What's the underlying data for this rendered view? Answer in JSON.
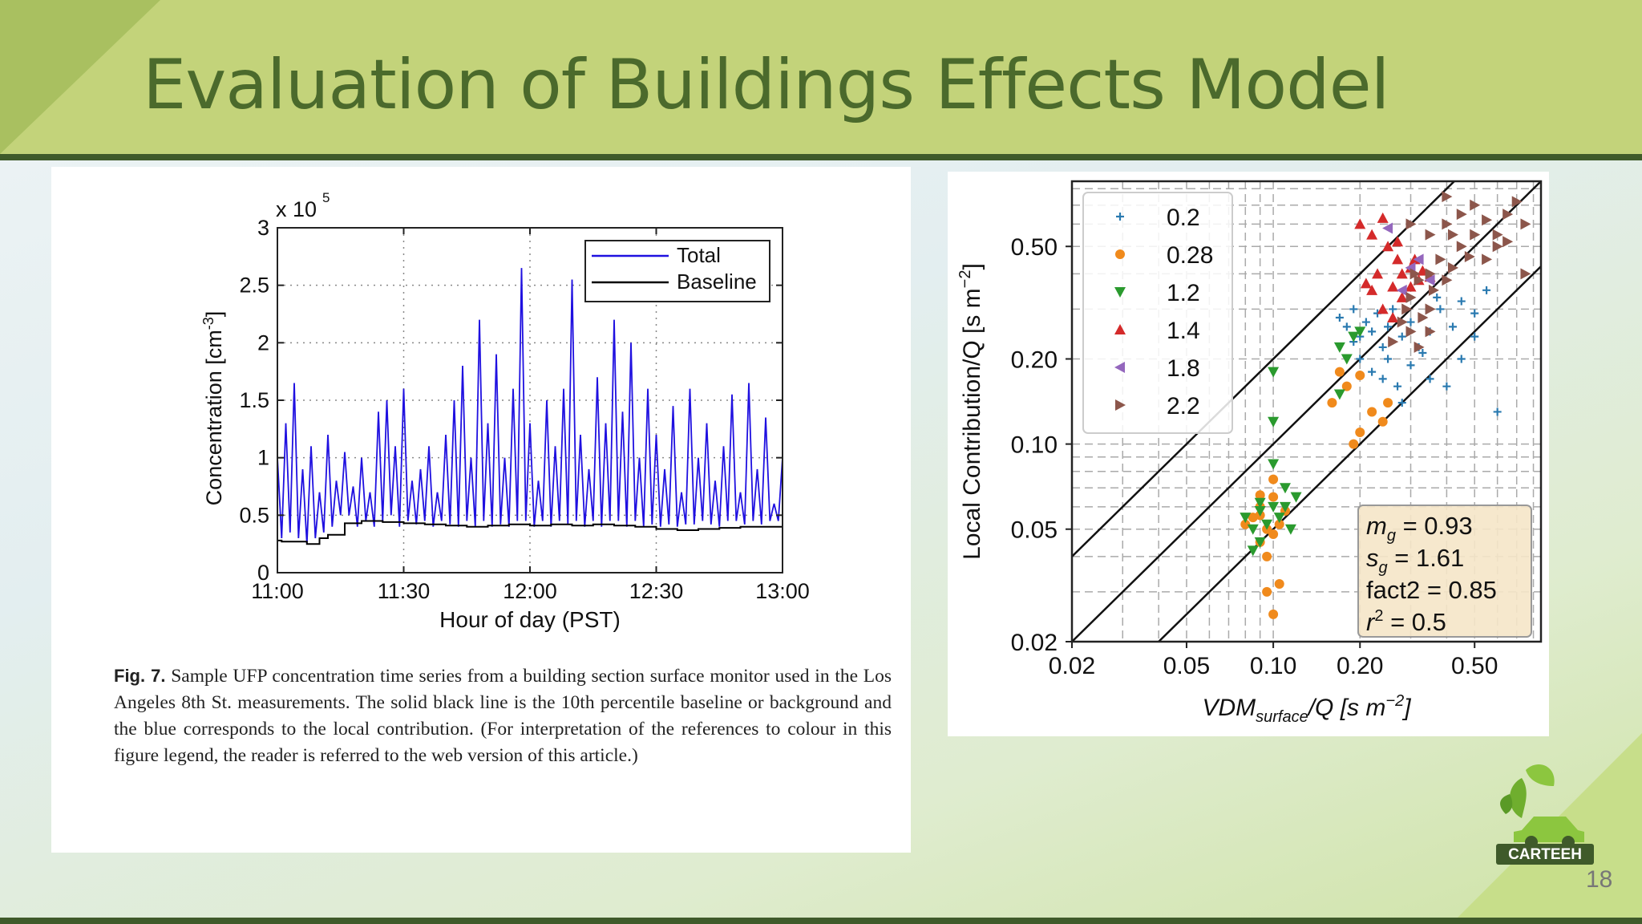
{
  "slide": {
    "title": "Evaluation of Buildings Effects Model",
    "page_number": "18",
    "logo_text": "CARTEEH",
    "colors": {
      "header": "#c3d37a",
      "title": "#4b6a2c",
      "rule": "#3f5a2a"
    }
  },
  "figure_left": {
    "caption_label": "Fig. 7.",
    "caption_text": "Sample UFP concentration time series from a building section surface monitor used in the Los Angeles 8th St. measurements. The solid black line is the 10th percentile baseline or background and the blue corresponds to the local contribution. (For interpretation of the references to colour in this figure legend, the reader is referred to the web version of this article.)"
  },
  "chart_data": [
    {
      "type": "line",
      "title": "",
      "xlabel": "Hour of day (PST)",
      "ylabel": "Concentration [cm",
      "ylabel_sup": "-3",
      "ylabel_end": "]",
      "y_multiplier": "x 10",
      "y_multiplier_exp": "5",
      "x_ticks": [
        "11:00",
        "11:30",
        "12:00",
        "12:30",
        "13:00"
      ],
      "x_range_minutes": [
        0,
        120
      ],
      "y_ticks": [
        "0",
        "0.5",
        "1",
        "1.5",
        "2",
        "2.5",
        "3"
      ],
      "ylim": [
        0,
        3
      ],
      "grid": "dotted",
      "legend_position": "top-right",
      "series": [
        {
          "name": "Total",
          "color": "#1f10e0",
          "x": [
            0,
            1,
            2,
            3,
            4,
            5,
            6,
            7,
            8,
            9,
            10,
            11,
            12,
            13,
            14,
            15,
            16,
            17,
            18,
            19,
            20,
            21,
            22,
            23,
            24,
            25,
            26,
            27,
            28,
            29,
            30,
            31,
            32,
            33,
            34,
            35,
            36,
            37,
            38,
            39,
            40,
            41,
            42,
            43,
            44,
            45,
            46,
            47,
            48,
            49,
            50,
            51,
            52,
            53,
            54,
            55,
            56,
            57,
            58,
            59,
            60,
            61,
            62,
            63,
            64,
            65,
            66,
            67,
            68,
            69,
            70,
            71,
            72,
            73,
            74,
            75,
            76,
            77,
            78,
            79,
            80,
            81,
            82,
            83,
            84,
            85,
            86,
            87,
            88,
            89,
            90,
            91,
            92,
            93,
            94,
            95,
            96,
            97,
            98,
            99,
            100,
            101,
            102,
            103,
            104,
            105,
            106,
            107,
            108,
            109,
            110,
            111,
            112,
            113,
            114,
            115,
            116,
            117,
            118,
            119,
            120
          ],
          "y": [
            1.0,
            0.3,
            1.3,
            0.35,
            1.65,
            0.3,
            0.9,
            0.25,
            1.1,
            0.3,
            0.7,
            0.35,
            1.2,
            0.4,
            0.8,
            0.5,
            1.05,
            0.5,
            0.75,
            0.4,
            1.0,
            0.45,
            0.7,
            0.4,
            1.4,
            0.45,
            1.5,
            0.5,
            1.1,
            0.4,
            1.6,
            0.45,
            0.8,
            0.42,
            0.9,
            0.45,
            1.1,
            0.4,
            0.7,
            0.45,
            1.2,
            0.42,
            1.5,
            0.4,
            1.8,
            0.45,
            1.0,
            0.4,
            2.2,
            0.45,
            1.3,
            0.4,
            1.9,
            0.42,
            1.0,
            0.4,
            1.6,
            0.45,
            2.65,
            0.45,
            1.3,
            0.4,
            0.8,
            0.45,
            1.5,
            0.4,
            1.1,
            0.45,
            1.6,
            0.42,
            2.55,
            0.45,
            1.2,
            0.4,
            0.9,
            0.45,
            1.7,
            0.4,
            1.3,
            0.45,
            2.2,
            0.45,
            1.4,
            0.4,
            2.0,
            0.45,
            1.0,
            0.4,
            1.6,
            0.42,
            1.2,
            0.4,
            0.9,
            0.42,
            1.45,
            0.4,
            0.7,
            0.42,
            1.6,
            0.42,
            1.0,
            0.45,
            1.3,
            0.42,
            0.8,
            0.4,
            1.1,
            0.45,
            1.55,
            0.45,
            0.7,
            0.42,
            1.65,
            0.45,
            0.9,
            0.42,
            1.35,
            0.45,
            0.6,
            0.45,
            1.0
          ]
        },
        {
          "name": "Baseline",
          "color": "#000000",
          "x": [
            0,
            1,
            4,
            7,
            10,
            12,
            16,
            20,
            25,
            30,
            35,
            40,
            45,
            50,
            55,
            60,
            65,
            70,
            75,
            80,
            85,
            90,
            95,
            100,
            105,
            110,
            115,
            120
          ],
          "y": [
            0.28,
            0.27,
            0.27,
            0.25,
            0.3,
            0.33,
            0.43,
            0.45,
            0.44,
            0.43,
            0.42,
            0.41,
            0.4,
            0.41,
            0.42,
            0.41,
            0.42,
            0.41,
            0.42,
            0.41,
            0.4,
            0.38,
            0.37,
            0.38,
            0.39,
            0.4,
            0.4,
            0.4
          ]
        }
      ]
    },
    {
      "type": "scatter",
      "title": "",
      "xlabel": "VDM",
      "xlabel_sub": "surface",
      "xlabel_end": "/Q [s m",
      "xlabel_sup": "−2",
      "xlabel_close": "]",
      "ylabel": "Local Contribution/Q [s m",
      "ylabel_sup": "−2",
      "ylabel_close": "]",
      "x_scale": "log",
      "y_scale": "log",
      "xlim": [
        0.02,
        0.85
      ],
      "ylim": [
        0.02,
        0.85
      ],
      "x_ticks": [
        {
          "v": 0.02,
          "label": "0.02"
        },
        {
          "v": 0.05,
          "label": "0.05"
        },
        {
          "v": 0.1,
          "label": "0.10"
        },
        {
          "v": 0.2,
          "label": "0.20"
        },
        {
          "v": 0.5,
          "label": "0.50"
        }
      ],
      "y_ticks": [
        {
          "v": 0.02,
          "label": "0.02"
        },
        {
          "v": 0.05,
          "label": "0.05"
        },
        {
          "v": 0.1,
          "label": "0.10"
        },
        {
          "v": 0.2,
          "label": "0.20"
        },
        {
          "v": 0.5,
          "label": "0.50"
        }
      ],
      "grid": "dashed",
      "legend_position": "top-left",
      "reference_lines": [
        {
          "factor": 2
        },
        {
          "factor": 1
        },
        {
          "factor": 0.5
        }
      ],
      "stats": [
        {
          "var": "m",
          "sub": "g",
          "sup": "",
          "value": " = 0.93"
        },
        {
          "var": "s",
          "sub": "g",
          "sup": "",
          "value": " = 1.61"
        },
        {
          "var": "fact2",
          "sub": "",
          "sup": "",
          "value": " = 0.85"
        },
        {
          "var": "r",
          "sub": "",
          "sup": "2",
          "value": " = 0.5"
        }
      ],
      "series": [
        {
          "name": "0.2",
          "marker": "plus",
          "color": "#2a7ab0",
          "points": [
            [
              0.17,
              0.28
            ],
            [
              0.18,
              0.26
            ],
            [
              0.19,
              0.3
            ],
            [
              0.2,
              0.24
            ],
            [
              0.21,
              0.27
            ],
            [
              0.22,
              0.25
            ],
            [
              0.23,
              0.29
            ],
            [
              0.24,
              0.22
            ],
            [
              0.25,
              0.26
            ],
            [
              0.26,
              0.3
            ],
            [
              0.28,
              0.24
            ],
            [
              0.3,
              0.27
            ],
            [
              0.32,
              0.22
            ],
            [
              0.35,
              0.25
            ],
            [
              0.38,
              0.3
            ],
            [
              0.42,
              0.26
            ],
            [
              0.45,
              0.32
            ],
            [
              0.5,
              0.24
            ],
            [
              0.2,
              0.2
            ],
            [
              0.22,
              0.18
            ],
            [
              0.25,
              0.2
            ],
            [
              0.27,
              0.16
            ],
            [
              0.3,
              0.19
            ],
            [
              0.35,
              0.17
            ],
            [
              0.4,
              0.16
            ],
            [
              0.45,
              0.2
            ],
            [
              0.55,
              0.35
            ],
            [
              0.6,
              0.13
            ],
            [
              0.28,
              0.14
            ],
            [
              0.33,
              0.21
            ],
            [
              0.19,
              0.23
            ],
            [
              0.24,
              0.17
            ],
            [
              0.5,
              0.29
            ],
            [
              0.37,
              0.33
            ]
          ]
        },
        {
          "name": "0.28",
          "marker": "circle",
          "color": "#f08a1c",
          "points": [
            [
              0.085,
              0.055
            ],
            [
              0.09,
              0.06
            ],
            [
              0.095,
              0.05
            ],
            [
              0.1,
              0.065
            ],
            [
              0.105,
              0.052
            ],
            [
              0.09,
              0.045
            ],
            [
              0.095,
              0.04
            ],
            [
              0.1,
              0.048
            ],
            [
              0.11,
              0.058
            ],
            [
              0.09,
              0.066
            ],
            [
              0.1,
              0.075
            ],
            [
              0.105,
              0.032
            ],
            [
              0.095,
              0.03
            ],
            [
              0.1,
              0.025
            ],
            [
              0.08,
              0.052
            ],
            [
              0.17,
              0.18
            ],
            [
              0.18,
              0.16
            ],
            [
              0.2,
              0.175
            ],
            [
              0.2,
              0.11
            ],
            [
              0.19,
              0.1
            ],
            [
              0.22,
              0.13
            ],
            [
              0.25,
              0.14
            ],
            [
              0.24,
              0.12
            ],
            [
              0.16,
              0.14
            ],
            [
              0.09,
              0.056
            ]
          ]
        },
        {
          "name": "1.2",
          "marker": "tri-down",
          "color": "#2a9a2e",
          "points": [
            [
              0.08,
              0.055
            ],
            [
              0.085,
              0.05
            ],
            [
              0.09,
              0.058
            ],
            [
              0.095,
              0.052
            ],
            [
              0.1,
              0.06
            ],
            [
              0.105,
              0.055
            ],
            [
              0.11,
              0.07
            ],
            [
              0.12,
              0.065
            ],
            [
              0.1,
              0.085
            ],
            [
              0.1,
              0.12
            ],
            [
              0.1,
              0.18
            ],
            [
              0.085,
              0.042
            ],
            [
              0.09,
              0.045
            ],
            [
              0.115,
              0.05
            ],
            [
              0.17,
              0.22
            ],
            [
              0.18,
              0.2
            ],
            [
              0.19,
              0.24
            ],
            [
              0.17,
              0.15
            ],
            [
              0.2,
              0.25
            ],
            [
              0.11,
              0.06
            ],
            [
              0.09,
              0.062
            ]
          ]
        },
        {
          "name": "1.4",
          "marker": "tri-up",
          "color": "#d42a2a",
          "points": [
            [
              0.2,
              0.6
            ],
            [
              0.22,
              0.55
            ],
            [
              0.24,
              0.63
            ],
            [
              0.25,
              0.5
            ],
            [
              0.27,
              0.45
            ],
            [
              0.28,
              0.4
            ],
            [
              0.3,
              0.42
            ],
            [
              0.32,
              0.38
            ],
            [
              0.22,
              0.35
            ],
            [
              0.21,
              0.37
            ],
            [
              0.24,
              0.3
            ],
            [
              0.26,
              0.28
            ],
            [
              0.28,
              0.33
            ],
            [
              0.3,
              0.36
            ],
            [
              0.33,
              0.41
            ],
            [
              0.35,
              0.39
            ],
            [
              0.23,
              0.4
            ],
            [
              0.27,
              0.52
            ],
            [
              0.31,
              0.45
            ],
            [
              0.26,
              0.36
            ]
          ]
        },
        {
          "name": "1.8",
          "marker": "tri-left",
          "color": "#9467bd",
          "points": [
            [
              0.25,
              0.58
            ],
            [
              0.3,
              0.42
            ],
            [
              0.35,
              0.38
            ],
            [
              0.32,
              0.45
            ],
            [
              0.28,
              0.35
            ]
          ]
        },
        {
          "name": "2.2",
          "marker": "tri-right",
          "color": "#8c564b",
          "points": [
            [
              0.3,
              0.6
            ],
            [
              0.35,
              0.55
            ],
            [
              0.4,
              0.6
            ],
            [
              0.45,
              0.65
            ],
            [
              0.5,
              0.7
            ],
            [
              0.55,
              0.62
            ],
            [
              0.6,
              0.55
            ],
            [
              0.65,
              0.65
            ],
            [
              0.7,
              0.72
            ],
            [
              0.75,
              0.6
            ],
            [
              0.4,
              0.75
            ],
            [
              0.45,
              0.5
            ],
            [
              0.5,
              0.55
            ],
            [
              0.6,
              0.5
            ],
            [
              0.35,
              0.4
            ],
            [
              0.38,
              0.45
            ],
            [
              0.4,
              0.38
            ],
            [
              0.42,
              0.42
            ],
            [
              0.3,
              0.33
            ],
            [
              0.32,
              0.38
            ],
            [
              0.35,
              0.3
            ],
            [
              0.28,
              0.27
            ],
            [
              0.3,
              0.25
            ],
            [
              0.32,
              0.22
            ],
            [
              0.35,
              0.25
            ],
            [
              0.55,
              0.45
            ],
            [
              0.75,
              0.4
            ],
            [
              0.26,
              0.23
            ],
            [
              0.29,
              0.3
            ],
            [
              0.48,
              0.46
            ],
            [
              0.36,
              0.35
            ],
            [
              0.65,
              0.52
            ],
            [
              0.33,
              0.28
            ],
            [
              0.42,
              0.55
            ],
            [
              0.31,
              0.4
            ]
          ]
        }
      ]
    }
  ]
}
